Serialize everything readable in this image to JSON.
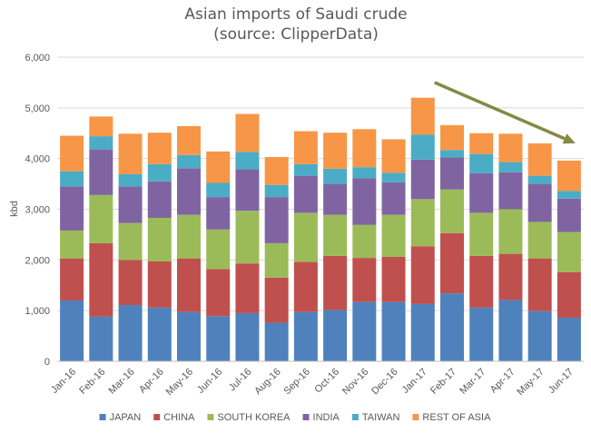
{
  "chart_data": {
    "type": "bar",
    "stacked": true,
    "title": "Asian imports of Saudi crude",
    "subtitle": "(source: ClipperData)",
    "xlabel": "",
    "ylabel": "kbd",
    "ylim": [
      0,
      6000
    ],
    "yticks": [
      "0",
      "1,000",
      "2,000",
      "3,000",
      "4,000",
      "5,000",
      "6,000"
    ],
    "ytick_values": [
      0,
      1000,
      2000,
      3000,
      4000,
      5000,
      6000
    ],
    "grid": true,
    "legend_position": "bottom",
    "categories": [
      "Jan-16",
      "Feb-16",
      "Mar-16",
      "Apr-16",
      "May-16",
      "Jun-16",
      "Jul-16",
      "Aug-16",
      "Sep-16",
      "Oct-16",
      "Nov-16",
      "Dec-16",
      "Jan-17",
      "Feb-17",
      "Mar-17",
      "Apr-17",
      "May-17",
      "Jun-17"
    ],
    "series": [
      {
        "name": "JAPAN",
        "color": "#4f81bd",
        "values": [
          1200,
          880,
          1110,
          1060,
          970,
          890,
          950,
          760,
          970,
          1010,
          1170,
          1170,
          1130,
          1340,
          1060,
          1210,
          990,
          860
        ]
      },
      {
        "name": "CHINA",
        "color": "#c0504d",
        "values": [
          830,
          1450,
          890,
          910,
          1060,
          930,
          980,
          890,
          990,
          1070,
          870,
          890,
          1140,
          1190,
          1020,
          910,
          1040,
          900
        ]
      },
      {
        "name": "SOUTH KOREA",
        "color": "#9bbb59",
        "values": [
          550,
          950,
          730,
          860,
          860,
          780,
          1040,
          680,
          970,
          810,
          650,
          830,
          930,
          860,
          850,
          880,
          720,
          790
        ]
      },
      {
        "name": "INDIA",
        "color": "#8064a2",
        "values": [
          870,
          900,
          720,
          720,
          920,
          640,
          820,
          910,
          730,
          610,
          920,
          640,
          780,
          630,
          780,
          730,
          750,
          660
        ]
      },
      {
        "name": "TAIWAN",
        "color": "#4bacc6",
        "values": [
          300,
          260,
          240,
          340,
          260,
          280,
          340,
          240,
          230,
          300,
          220,
          190,
          490,
          150,
          380,
          200,
          160,
          150
        ]
      },
      {
        "name": "REST OF ASIA",
        "color": "#f79646",
        "values": [
          700,
          390,
          800,
          620,
          570,
          620,
          750,
          550,
          650,
          710,
          750,
          660,
          730,
          490,
          410,
          560,
          640,
          600
        ]
      }
    ],
    "annotation": {
      "type": "arrow",
      "color": "#848a45",
      "from_category": "Jan-17",
      "from_value": 5500,
      "to_category": "Jun-17",
      "to_value": 4300
    }
  }
}
